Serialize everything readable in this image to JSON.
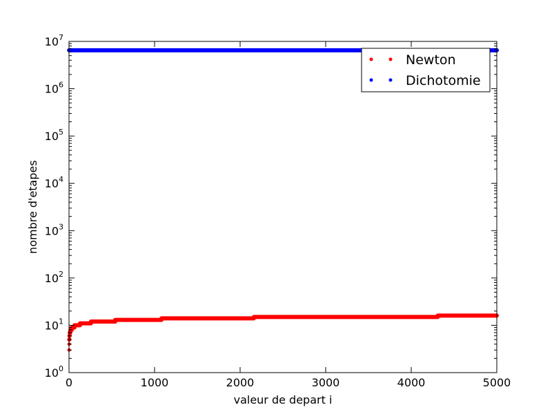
{
  "chart_data": {
    "type": "scatter",
    "xlabel": "valeur de depart i",
    "ylabel": "nombre d'etapes",
    "xlim": [
      0,
      5000
    ],
    "ylim": [
      1,
      10000000
    ],
    "yscale": "log",
    "grid": false,
    "legend_placement": "top-right",
    "x_ticks": [
      0,
      1000,
      2000,
      3000,
      4000,
      5000
    ],
    "x_tick_labels": [
      "0",
      "1000",
      "2000",
      "3000",
      "4000",
      "5000"
    ],
    "y_ticks": [
      1,
      10,
      100,
      1000,
      10000,
      100000,
      1000000,
      10000000
    ],
    "y_tick_labels": [
      {
        "base": "10",
        "exp": "0"
      },
      {
        "base": "10",
        "exp": "1"
      },
      {
        "base": "10",
        "exp": "2"
      },
      {
        "base": "10",
        "exp": "3"
      },
      {
        "base": "10",
        "exp": "4"
      },
      {
        "base": "10",
        "exp": "5"
      },
      {
        "base": "10",
        "exp": "6"
      },
      {
        "base": "10",
        "exp": "7"
      }
    ],
    "series": [
      {
        "name": "Newton",
        "color": "#ff0000",
        "marker": "point",
        "points": [
          [
            1,
            3
          ],
          [
            2,
            4
          ],
          [
            3,
            5
          ],
          [
            4,
            5
          ],
          [
            5,
            6
          ],
          [
            8,
            6
          ],
          [
            9,
            7
          ],
          [
            16,
            7
          ],
          [
            17,
            8
          ],
          [
            32,
            8
          ],
          [
            33,
            9
          ],
          [
            64,
            9
          ],
          [
            65,
            10
          ],
          [
            128,
            10
          ],
          [
            129,
            11
          ],
          [
            256,
            11
          ],
          [
            257,
            12
          ],
          [
            540,
            12
          ],
          [
            541,
            13
          ],
          [
            1080,
            13
          ],
          [
            1081,
            14
          ],
          [
            2160,
            14
          ],
          [
            2161,
            15
          ],
          [
            4310,
            15
          ],
          [
            4311,
            16
          ],
          [
            5000,
            16
          ]
        ]
      },
      {
        "name": "Dichotomie",
        "color": "#0000ff",
        "marker": "point",
        "points": [
          [
            1,
            6500000
          ],
          [
            5000,
            6500000
          ]
        ]
      }
    ]
  }
}
